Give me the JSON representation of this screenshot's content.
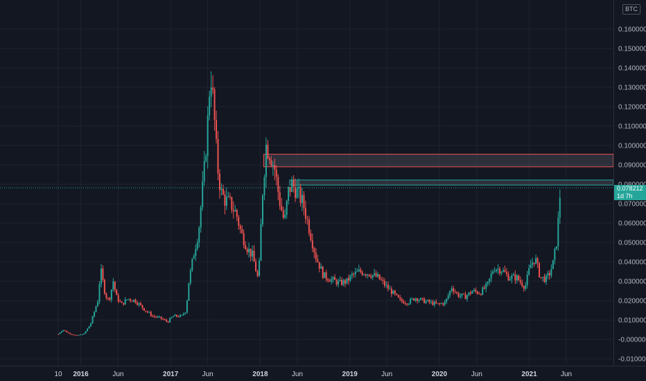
{
  "symbol": "BTC",
  "last_price": {
    "value": 0.078212,
    "label": "0.078212",
    "countdown": "1d 7h"
  },
  "colors": {
    "background": "#131722",
    "up": "#26a69a",
    "down": "#ef5350",
    "grid": "#1f2330",
    "text": "#b2b5be"
  },
  "chart_data": {
    "type": "candlestick",
    "y_ticks": [
      "0.160000",
      "0.150000",
      "0.140000",
      "0.130000",
      "0.120000",
      "0.110000",
      "0.100000",
      "0.090000",
      "0.080000",
      "0.070000",
      "0.060000",
      "0.050000",
      "0.040000",
      "0.030000",
      "0.020000",
      "0.010000",
      "-0.000000",
      "-0.010000"
    ],
    "y_values": [
      0.16,
      0.15,
      0.14,
      0.13,
      0.12,
      0.11,
      0.1,
      0.09,
      0.08,
      0.07,
      0.06,
      0.05,
      0.04,
      0.03,
      0.02,
      0.01,
      0,
      -0.01
    ],
    "ylim": [
      -0.0135,
      0.1645
    ],
    "x_ticks": [
      "10",
      "2016",
      "Jun",
      "2017",
      "Jun",
      "2018",
      "Jun",
      "2019",
      "Jun",
      "2020",
      "Jun",
      "2021",
      "Jun"
    ],
    "x_tick_dates": [
      "2015-10-01",
      "2016-01-01",
      "2016-06-01",
      "2017-01-01",
      "2017-06-01",
      "2018-01-01",
      "2018-06-01",
      "2019-01-01",
      "2019-06-01",
      "2020-01-01",
      "2020-06-01",
      "2021-01-01",
      "2021-06-01"
    ],
    "xlim": [
      "2015-10-01",
      "2021-10-15"
    ],
    "zones": [
      {
        "from": 0.089,
        "to": 0.0955,
        "start": "2018-01-15",
        "color": "#ef5350"
      },
      {
        "from": 0.0796,
        "to": 0.0822,
        "start": "2018-05-01",
        "color": "#26a69a"
      }
    ],
    "anchors": [
      [
        "2015-10-01",
        0.0028
      ],
      [
        "2015-10-20",
        0.005
      ],
      [
        "2015-11-15",
        0.003
      ],
      [
        "2015-12-15",
        0.002
      ],
      [
        "2016-01-15",
        0.003
      ],
      [
        "2016-02-10",
        0.008
      ],
      [
        "2016-03-10",
        0.02
      ],
      [
        "2016-03-22",
        0.036
      ],
      [
        "2016-04-10",
        0.023
      ],
      [
        "2016-04-25",
        0.02
      ],
      [
        "2016-05-12",
        0.03
      ],
      [
        "2016-05-25",
        0.022
      ],
      [
        "2016-06-15",
        0.018
      ],
      [
        "2016-07-10",
        0.021
      ],
      [
        "2016-08-10",
        0.02
      ],
      [
        "2016-09-20",
        0.015
      ],
      [
        "2016-10-20",
        0.012
      ],
      [
        "2016-11-20",
        0.011
      ],
      [
        "2016-12-20",
        0.009
      ],
      [
        "2017-01-10",
        0.012
      ],
      [
        "2017-02-15",
        0.012
      ],
      [
        "2017-03-05",
        0.015
      ],
      [
        "2017-03-15",
        0.029
      ],
      [
        "2017-04-05",
        0.044
      ],
      [
        "2017-04-25",
        0.056
      ],
      [
        "2017-05-20",
        0.09
      ],
      [
        "2017-06-05",
        0.12
      ],
      [
        "2017-06-12",
        0.14
      ],
      [
        "2017-06-25",
        0.12
      ],
      [
        "2017-07-10",
        0.09
      ],
      [
        "2017-07-25",
        0.076
      ],
      [
        "2017-08-10",
        0.072
      ],
      [
        "2017-09-01",
        0.07
      ],
      [
        "2017-09-25",
        0.065
      ],
      [
        "2017-10-15",
        0.055
      ],
      [
        "2017-11-10",
        0.047
      ],
      [
        "2017-12-01",
        0.043
      ],
      [
        "2017-12-25",
        0.03
      ],
      [
        "2018-01-10",
        0.075
      ],
      [
        "2018-01-25",
        0.1
      ],
      [
        "2018-02-10",
        0.096
      ],
      [
        "2018-03-01",
        0.088
      ],
      [
        "2018-03-20",
        0.072
      ],
      [
        "2018-04-10",
        0.06
      ],
      [
        "2018-04-25",
        0.076
      ],
      [
        "2018-05-10",
        0.08
      ],
      [
        "2018-06-01",
        0.076
      ],
      [
        "2018-06-25",
        0.07
      ],
      [
        "2018-07-20",
        0.057
      ],
      [
        "2018-08-15",
        0.043
      ],
      [
        "2018-09-15",
        0.033
      ],
      [
        "2018-10-15",
        0.031
      ],
      [
        "2018-11-20",
        0.029
      ],
      [
        "2018-12-20",
        0.03
      ],
      [
        "2019-01-10",
        0.033
      ],
      [
        "2019-02-10",
        0.035
      ],
      [
        "2019-03-20",
        0.034
      ],
      [
        "2019-04-25",
        0.032
      ],
      [
        "2019-05-25",
        0.028
      ],
      [
        "2019-06-25",
        0.024
      ],
      [
        "2019-07-25",
        0.02
      ],
      [
        "2019-08-25",
        0.019
      ],
      [
        "2019-09-25",
        0.0215
      ],
      [
        "2019-10-25",
        0.02
      ],
      [
        "2019-11-25",
        0.019
      ],
      [
        "2019-12-25",
        0.018
      ],
      [
        "2020-01-25",
        0.019
      ],
      [
        "2020-02-20",
        0.027
      ],
      [
        "2020-03-15",
        0.023
      ],
      [
        "2020-04-15",
        0.022
      ],
      [
        "2020-05-15",
        0.025
      ],
      [
        "2020-06-15",
        0.024
      ],
      [
        "2020-07-15",
        0.028
      ],
      [
        "2020-08-10",
        0.037
      ],
      [
        "2020-09-10",
        0.036
      ],
      [
        "2020-10-10",
        0.032
      ],
      [
        "2020-11-10",
        0.032
      ],
      [
        "2020-12-15",
        0.027
      ],
      [
        "2021-01-05",
        0.038
      ],
      [
        "2021-01-25",
        0.042
      ],
      [
        "2021-02-15",
        0.032
      ],
      [
        "2021-03-10",
        0.031
      ],
      [
        "2021-03-25",
        0.034
      ],
      [
        "2021-04-10",
        0.04
      ],
      [
        "2021-04-25",
        0.053
      ],
      [
        "2021-05-08",
        0.0782
      ]
    ]
  }
}
